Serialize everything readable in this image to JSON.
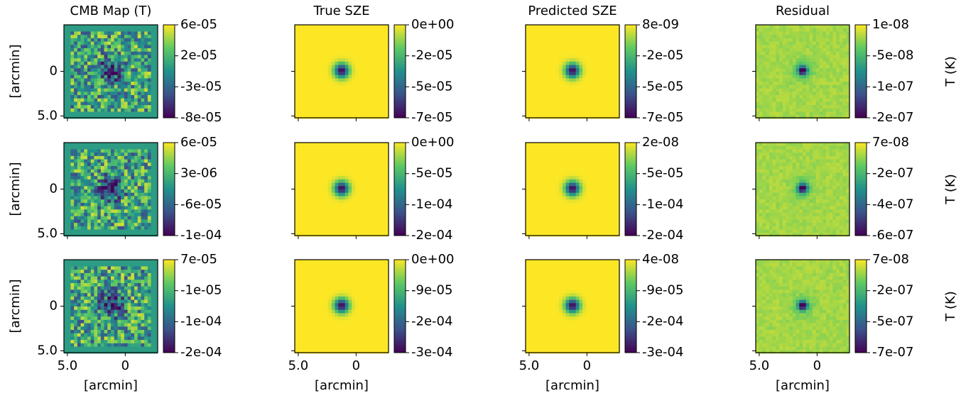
{
  "chart_data": [
    {
      "type": "heatmap",
      "title": "CMB Map (T)",
      "ylabel": "[arcmin]",
      "xlim": [
        5.3,
        -2.8
      ],
      "ylim": [
        5.2,
        -5.2
      ],
      "yticks": [
        {
          "value": 0,
          "label": "0"
        },
        {
          "value": 5,
          "label": "5.0"
        }
      ],
      "cmap": "viridis",
      "clim": [
        -7.7e-05,
        6.4e-05
      ],
      "cticks": [
        {
          "value": 6.4e-05,
          "label": "6e-05"
        },
        {
          "value": 1.7e-05,
          "label": "2e-05"
        },
        {
          "value": -3e-05,
          "label": "-3e-05"
        },
        {
          "value": -7.7e-05,
          "label": "-8e-05"
        }
      ]
    },
    {
      "type": "heatmap",
      "title": "True SZE",
      "xlim": [
        5.3,
        -2.8
      ],
      "ylim": [
        5.2,
        -5.2
      ],
      "cmap": "viridis",
      "clim": [
        -7.2e-05,
        0
      ],
      "cticks": [
        {
          "value": 0,
          "label": "0e+00"
        },
        {
          "value": -2.4e-05,
          "label": "-2e-05"
        },
        {
          "value": -4.8e-05,
          "label": "-5e-05"
        },
        {
          "value": -7.2e-05,
          "label": "-7e-05"
        }
      ]
    },
    {
      "type": "heatmap",
      "title": "Predicted SZE",
      "xlim": [
        5.3,
        -2.8
      ],
      "ylim": [
        5.2,
        -5.2
      ],
      "cmap": "viridis",
      "clim": [
        -7.2e-05,
        8e-09
      ],
      "cticks": [
        {
          "value": 8e-09,
          "label": "8e-09"
        },
        {
          "value": -2.4e-05,
          "label": "-2e-05"
        },
        {
          "value": -4.8e-05,
          "label": "-5e-05"
        },
        {
          "value": -7.2e-05,
          "label": "-7e-05"
        }
      ]
    },
    {
      "type": "heatmap",
      "title": "Residual",
      "clabel": "T (K)",
      "xlim": [
        5.3,
        -2.8
      ],
      "ylim": [
        5.2,
        -5.2
      ],
      "cmap": "viridis",
      "clim": [
        -1.81e-07,
        1.4e-08
      ],
      "cticks": [
        {
          "value": 1.4e-08,
          "label": "1e-08"
        },
        {
          "value": -5.1e-08,
          "label": "-5e-08"
        },
        {
          "value": -1.16e-07,
          "label": "-1e-07"
        },
        {
          "value": -1.81e-07,
          "label": "-2e-07"
        }
      ]
    },
    {
      "type": "heatmap",
      "ylabel": "[arcmin]",
      "xlim": [
        5.3,
        -2.8
      ],
      "ylim": [
        5.2,
        -5.2
      ],
      "yticks": [
        {
          "value": 0,
          "label": "0"
        },
        {
          "value": 5,
          "label": "5.0"
        }
      ],
      "cmap": "viridis",
      "clim": [
        -0.000119,
        6.4e-05
      ],
      "cticks": [
        {
          "value": 6.4e-05,
          "label": "6e-05"
        },
        {
          "value": 3e-06,
          "label": "3e-06"
        },
        {
          "value": -5.8e-05,
          "label": "-6e-05"
        },
        {
          "value": -0.000119,
          "label": "-1e-04"
        }
      ]
    },
    {
      "type": "heatmap",
      "xlim": [
        5.3,
        -2.8
      ],
      "ylim": [
        5.2,
        -5.2
      ],
      "cmap": "viridis",
      "clim": [
        -0.000159,
        0
      ],
      "cticks": [
        {
          "value": 0,
          "label": "0e+00"
        },
        {
          "value": -5.3e-05,
          "label": "-5e-05"
        },
        {
          "value": -0.000106,
          "label": "-1e-04"
        },
        {
          "value": -0.000159,
          "label": "-2e-04"
        }
      ]
    },
    {
      "type": "heatmap",
      "xlim": [
        5.3,
        -2.8
      ],
      "ylim": [
        5.2,
        -5.2
      ],
      "cmap": "viridis",
      "clim": [
        -0.000159,
        2e-08
      ],
      "cticks": [
        {
          "value": 2e-08,
          "label": "2e-08"
        },
        {
          "value": -5.3e-05,
          "label": "-5e-05"
        },
        {
          "value": -0.000106,
          "label": "-1e-04"
        },
        {
          "value": -0.000159,
          "label": "-2e-04"
        }
      ]
    },
    {
      "type": "heatmap",
      "clabel": "T (K)",
      "xlim": [
        5.3,
        -2.8
      ],
      "ylim": [
        5.2,
        -5.2
      ],
      "cmap": "viridis",
      "clim": [
        -6.2e-07,
        7e-08
      ],
      "cticks": [
        {
          "value": 7e-08,
          "label": "7e-08"
        },
        {
          "value": -1.6e-07,
          "label": "-2e-07"
        },
        {
          "value": -3.9e-07,
          "label": "-4e-07"
        },
        {
          "value": -6.2e-07,
          "label": "-6e-07"
        }
      ]
    },
    {
      "type": "heatmap",
      "xlabel": "[arcmin]",
      "ylabel": "[arcmin]",
      "xlim": [
        5.3,
        -2.8
      ],
      "ylim": [
        5.2,
        -5.2
      ],
      "xticks": [
        {
          "value": 5,
          "label": "5.0"
        },
        {
          "value": 0,
          "label": "0"
        }
      ],
      "yticks": [
        {
          "value": 0,
          "label": "0"
        },
        {
          "value": 5,
          "label": "5.0"
        }
      ],
      "cmap": "viridis",
      "clim": [
        -0.000181,
        7.4e-05
      ],
      "cticks": [
        {
          "value": 7.4e-05,
          "label": "7e-05"
        },
        {
          "value": -1.1e-05,
          "label": "-1e-05"
        },
        {
          "value": -9.6e-05,
          "label": "-1e-04"
        },
        {
          "value": -0.000181,
          "label": "-2e-04"
        }
      ]
    },
    {
      "type": "heatmap",
      "xlabel": "[arcmin]",
      "xlim": [
        5.3,
        -2.8
      ],
      "ylim": [
        5.2,
        -5.2
      ],
      "xticks": [
        {
          "value": 5,
          "label": "5.0"
        },
        {
          "value": 0,
          "label": "0"
        }
      ],
      "cmap": "viridis",
      "clim": [
        -0.00027,
        0
      ],
      "cticks": [
        {
          "value": 0,
          "label": "0e+00"
        },
        {
          "value": -9e-05,
          "label": "-9e-05"
        },
        {
          "value": -0.00018,
          "label": "-2e-04"
        },
        {
          "value": -0.00027,
          "label": "-3e-04"
        }
      ]
    },
    {
      "type": "heatmap",
      "xlabel": "[arcmin]",
      "xlim": [
        5.3,
        -2.8
      ],
      "ylim": [
        5.2,
        -5.2
      ],
      "xticks": [
        {
          "value": 5,
          "label": "5.0"
        },
        {
          "value": 0,
          "label": "0"
        }
      ],
      "cmap": "viridis",
      "clim": [
        -0.00027,
        4e-08
      ],
      "cticks": [
        {
          "value": 4e-08,
          "label": "4e-08"
        },
        {
          "value": -9e-05,
          "label": "-9e-05"
        },
        {
          "value": -0.00018,
          "label": "-2e-04"
        },
        {
          "value": -0.00027,
          "label": "-3e-04"
        }
      ]
    },
    {
      "type": "heatmap",
      "xlabel": "[arcmin]",
      "clabel": "T (K)",
      "xlim": [
        5.3,
        -2.8
      ],
      "ylim": [
        5.2,
        -5.2
      ],
      "xticks": [
        {
          "value": 5,
          "label": "5.0"
        },
        {
          "value": 0,
          "label": "0"
        }
      ],
      "cmap": "viridis",
      "clim": [
        -7.4e-07,
        7e-08
      ],
      "cticks": [
        {
          "value": 7e-08,
          "label": "7e-08"
        },
        {
          "value": -2e-07,
          "label": "-2e-07"
        },
        {
          "value": -4.7e-07,
          "label": "-5e-07"
        },
        {
          "value": -7.4e-07,
          "label": "-7e-07"
        }
      ]
    }
  ]
}
